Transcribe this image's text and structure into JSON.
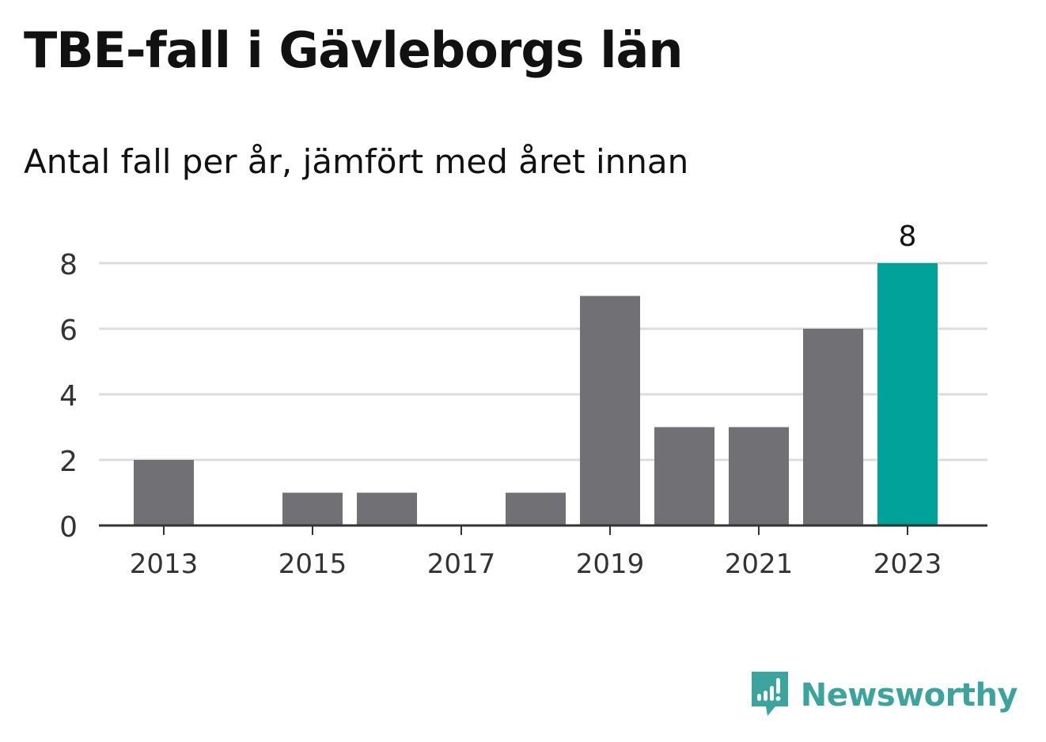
{
  "header": {
    "title": "TBE-fall i Gävleborgs län",
    "subtitle": "Antal fall per år, jämfört med året innan"
  },
  "branding": {
    "name": "Newsworthy",
    "logo_icon": "bar-chart-speech-bubble-icon",
    "color": "#3aa49d"
  },
  "colors": {
    "bar": "#707075",
    "highlight": "#00a29a",
    "grid": "#dcdcdc",
    "axis": "#333333"
  },
  "chart_data": {
    "type": "bar",
    "title": "TBE-fall i Gävleborgs län",
    "subtitle": "Antal fall per år, jämfört med året innan",
    "xlabel": "",
    "ylabel": "",
    "categories": [
      "2013",
      "2014",
      "2015",
      "2016",
      "2017",
      "2018",
      "2019",
      "2020",
      "2021",
      "2022",
      "2023"
    ],
    "values": [
      2,
      0,
      1,
      1,
      0,
      1,
      7,
      3,
      3,
      6,
      8
    ],
    "highlight_category": "2023",
    "data_labels": [
      {
        "category": "2023",
        "text": "8"
      }
    ],
    "x_tick_labels": [
      "2013",
      "2015",
      "2017",
      "2019",
      "2021",
      "2023"
    ],
    "y_tick_labels": [
      "0",
      "2",
      "4",
      "6",
      "8"
    ],
    "ylim": [
      0,
      8
    ],
    "grid": true,
    "legend": "none"
  }
}
